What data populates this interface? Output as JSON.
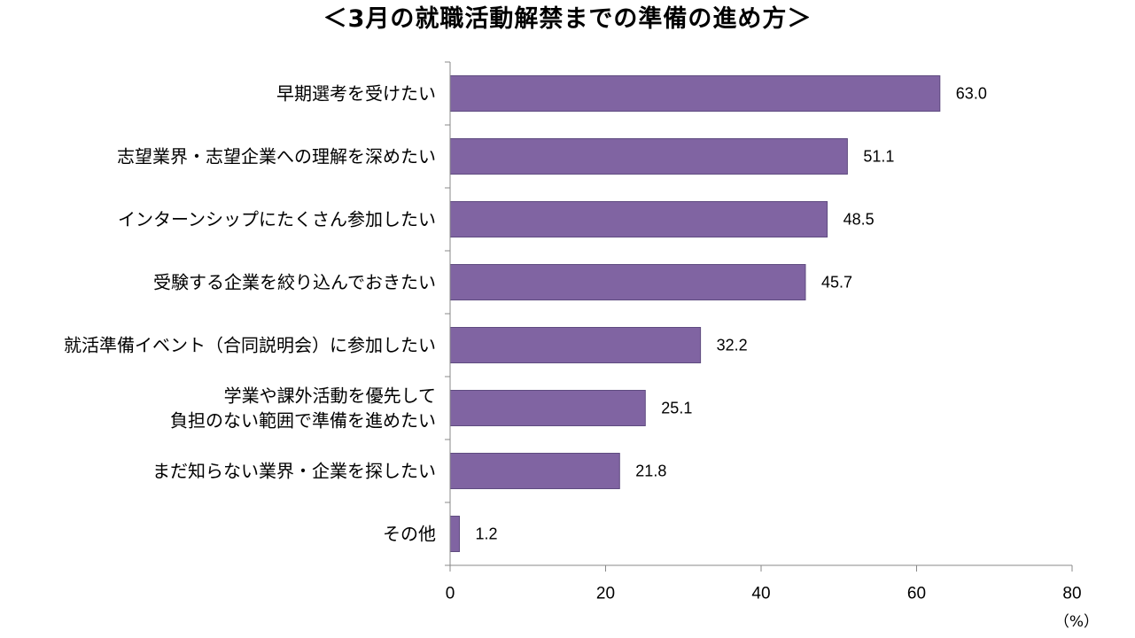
{
  "chart_data": {
    "type": "bar",
    "orientation": "horizontal",
    "title": "＜3月の就職活動解禁までの準備の進め方＞",
    "categories": [
      "早期選考を受けたい",
      "志望業界・志望企業への理解を深めたい",
      "インターンシップにたくさん参加したい",
      "受験する企業を絞り込んでおきたい",
      "就活準備イベント（合同説明会）に参加したい",
      "学業や課外活動を優先して\n負担のない範囲で準備を進めたい",
      "まだ知らない業界・企業を探したい",
      "その他"
    ],
    "values": [
      63.0,
      51.1,
      48.5,
      45.7,
      32.2,
      25.1,
      21.8,
      1.2
    ],
    "value_labels": [
      "63.0",
      "51.1",
      "48.5",
      "45.7",
      "32.2",
      "25.1",
      "21.8",
      "1.2"
    ],
    "xlim": [
      0,
      80
    ],
    "x_ticks": [
      0,
      20,
      40,
      60,
      80
    ],
    "unit_label": "（%）",
    "bar_color": "#8064a2",
    "bar_edge_color": "#5f4b80",
    "grid": false,
    "legend": "none"
  }
}
